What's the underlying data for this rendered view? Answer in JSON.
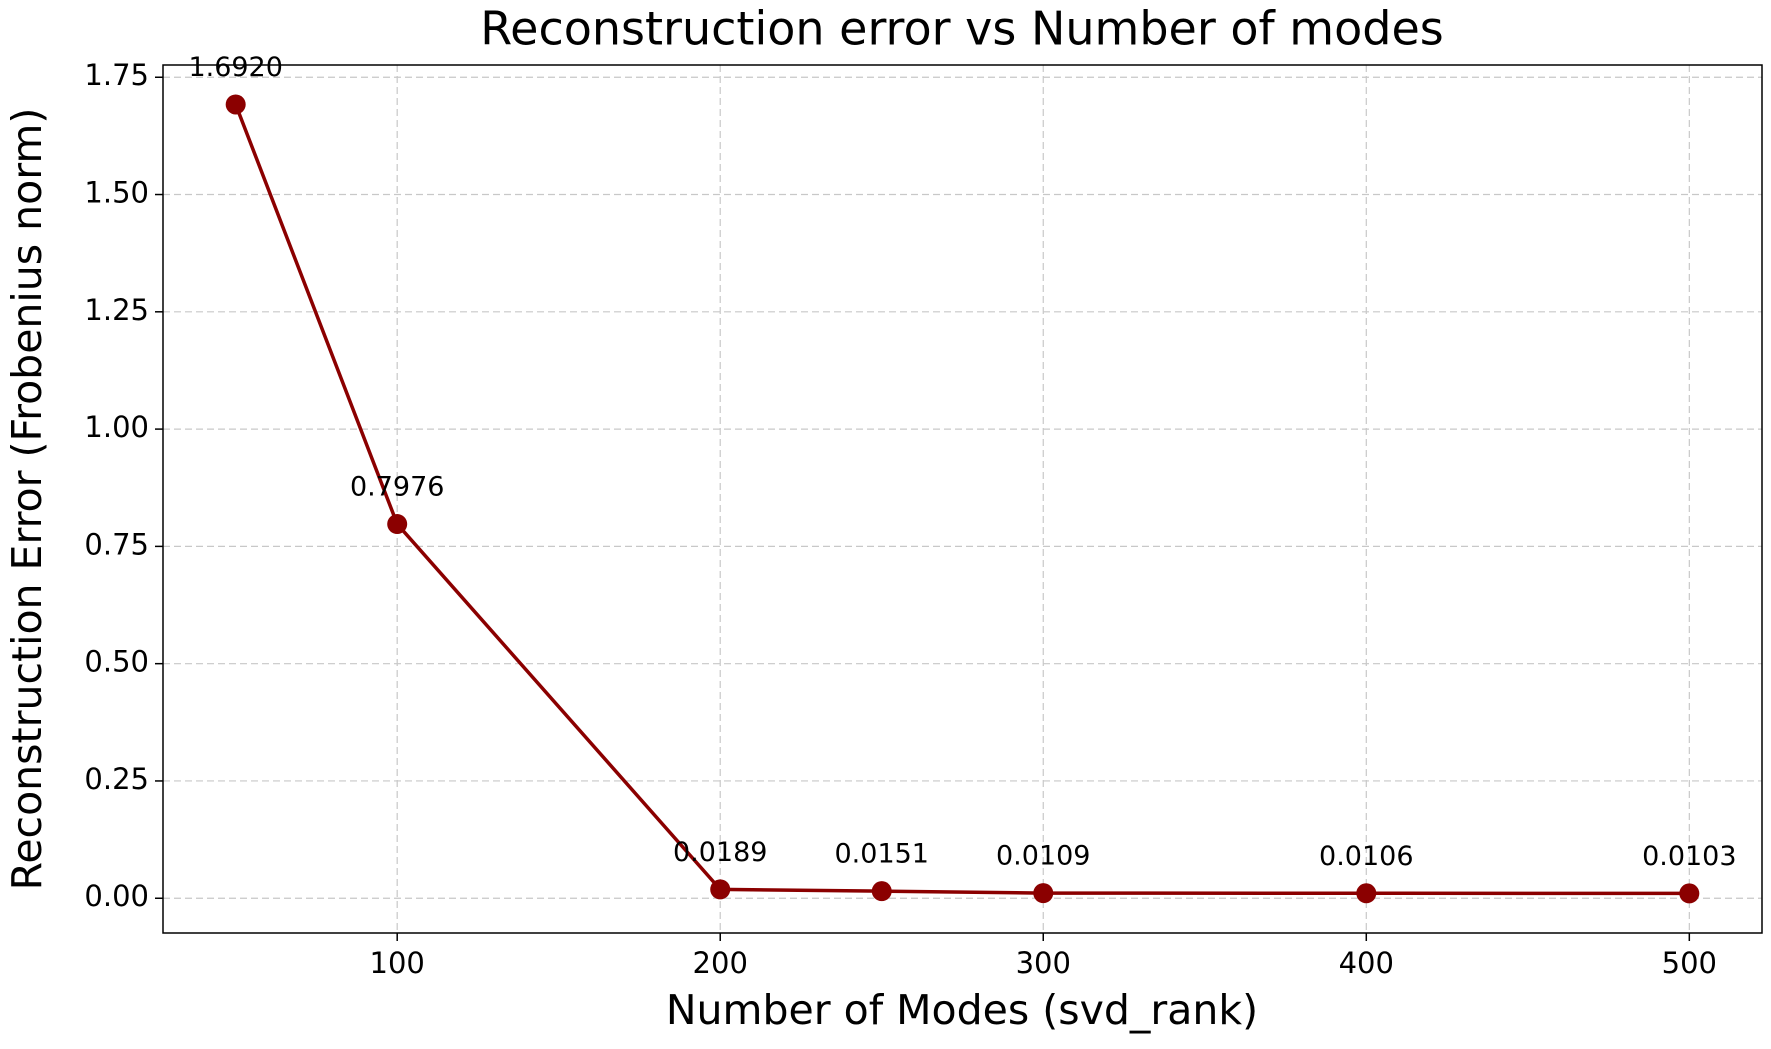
{
  "chart_data": {
    "type": "line",
    "title": "Reconstruction error vs Number of modes",
    "x_label": "Number of Modes (svd_rank)",
    "y_label": "Reconstruction Error (Frobenius norm)",
    "x": [
      50,
      100,
      200,
      250,
      300,
      400,
      500
    ],
    "series": [
      {
        "color": "#8b0000",
        "values": [
          1.692,
          0.7976,
          0.0189,
          0.0151,
          0.0109,
          0.0106,
          0.0103
        ],
        "value_labels": [
          "1.6920",
          "0.7976",
          "0.0189",
          "0.0151",
          "0.0109",
          "0.0106",
          "0.0103"
        ]
      }
    ],
    "xlim": [
      27.5,
      522.5
    ],
    "xticks": [
      100,
      200,
      300,
      400,
      500
    ],
    "ylim": [
      -0.0741,
      1.7761
    ],
    "yticks": [
      {
        "value": 0,
        "label": "0.00"
      },
      {
        "value": 0.25,
        "label": "0.25"
      },
      {
        "value": 0.5,
        "label": "0.50"
      },
      {
        "value": 0.75,
        "label": "0.75"
      },
      {
        "value": 1,
        "label": "1.00"
      },
      {
        "value": 1.25,
        "label": "1.25"
      },
      {
        "value": 1.5,
        "label": "1.50"
      },
      {
        "value": 1.75,
        "label": "1.75"
      }
    ],
    "grid": true
  }
}
